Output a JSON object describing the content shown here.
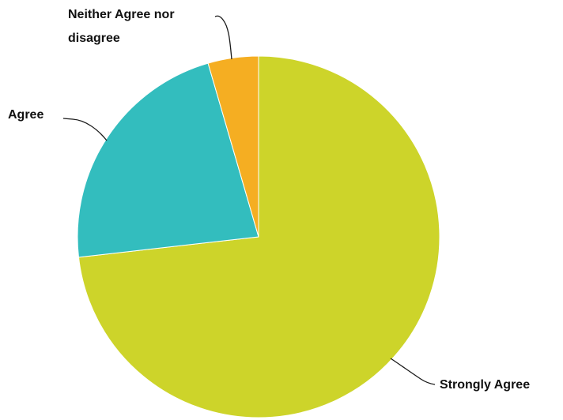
{
  "chart_data": {
    "type": "pie",
    "title": "",
    "start_angle_deg": 0,
    "direction": "clockwise",
    "slices": [
      {
        "label": "Strongly Agree",
        "value": 73.2,
        "color": "#cdd42a"
      },
      {
        "label": "Agree",
        "value": 22.3,
        "color": "#33bdbe"
      },
      {
        "label": "Neither Agree nor disagree",
        "label_lines": [
          "Neither Agree nor",
          "disagree"
        ],
        "value": 4.5,
        "color": "#f5ae22"
      }
    ]
  }
}
